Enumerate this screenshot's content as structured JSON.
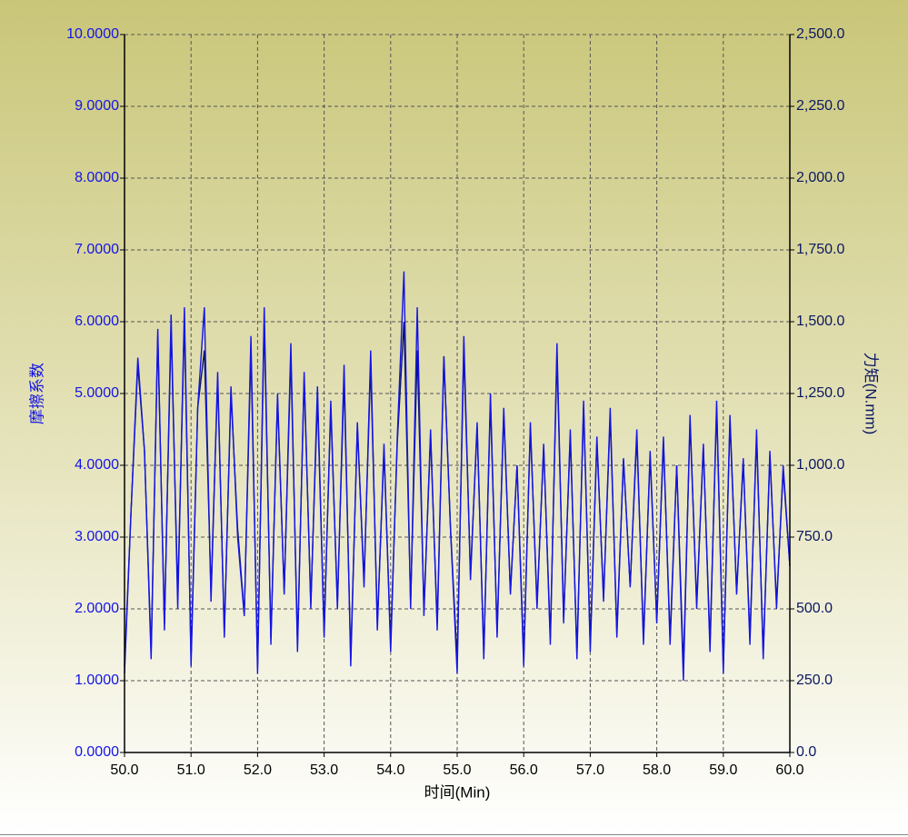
{
  "chart_data": {
    "type": "line",
    "xlabel": "时间(Min)",
    "ylabel": "摩擦系数",
    "y2label": "力矩(N.mm)",
    "x": [
      50.0,
      50.1,
      50.2,
      50.3,
      50.4,
      50.5,
      50.6,
      50.7,
      50.8,
      50.9,
      51.0,
      51.1,
      51.2,
      51.3,
      51.4,
      51.5,
      51.6,
      51.7,
      51.8,
      51.9,
      52.0,
      52.1,
      52.2,
      52.3,
      52.4,
      52.5,
      52.6,
      52.7,
      52.8,
      52.9,
      53.0,
      53.1,
      53.2,
      53.3,
      53.4,
      53.5,
      53.6,
      53.7,
      53.8,
      53.9,
      54.0,
      54.1,
      54.2,
      54.3,
      54.4,
      54.5,
      54.6,
      54.7,
      54.8,
      54.9,
      55.0,
      55.1,
      55.2,
      55.3,
      55.4,
      55.5,
      55.6,
      55.7,
      55.8,
      55.9,
      56.0,
      56.1,
      56.2,
      56.3,
      56.4,
      56.5,
      56.6,
      56.7,
      56.8,
      56.9,
      57.0,
      57.1,
      57.2,
      57.3,
      57.4,
      57.5,
      57.6,
      57.7,
      57.8,
      57.9,
      58.0,
      58.1,
      58.2,
      58.3,
      58.4,
      58.5,
      58.6,
      58.7,
      58.8,
      58.9,
      59.0,
      59.1,
      59.2,
      59.3,
      59.4,
      59.5,
      59.6,
      59.7,
      59.8,
      59.9,
      60.0
    ],
    "series": [
      {
        "name": "力矩(N.mm)",
        "color": "#0b1760",
        "axis": "y2",
        "values": [
          300,
          850,
          1350,
          1050,
          350,
          1450,
          450,
          1480,
          550,
          1500,
          330,
          1200,
          1400,
          560,
          1300,
          420,
          1250,
          780,
          480,
          1400,
          300,
          1500,
          400,
          1230,
          560,
          1380,
          380,
          1300,
          520,
          1230,
          420,
          1200,
          520,
          1300,
          330,
          1130,
          600,
          1350,
          450,
          1050,
          380,
          1080,
          1500,
          520,
          1400,
          500,
          1100,
          450,
          1380,
          780,
          320,
          1400,
          620,
          1130,
          350,
          1220,
          420,
          1180,
          560,
          1000,
          330,
          1130,
          520,
          1060,
          400,
          1380,
          470,
          1100,
          350,
          1200,
          380,
          1080,
          540,
          1170,
          420,
          1020,
          580,
          1100,
          400,
          1030,
          460,
          1080,
          400,
          1000,
          300,
          1150,
          520,
          1060,
          380,
          1200,
          300,
          1150,
          560,
          1010,
          400,
          1100,
          350,
          1030,
          520,
          980,
          650
        ]
      },
      {
        "name": "摩擦系数",
        "color": "#1414e6",
        "values": [
          1.1,
          3.4,
          5.5,
          4.2,
          1.3,
          5.9,
          1.7,
          6.1,
          2.0,
          6.2,
          1.2,
          4.8,
          6.2,
          2.1,
          5.3,
          1.6,
          5.1,
          3.0,
          1.9,
          5.8,
          1.1,
          6.2,
          1.5,
          5.0,
          2.2,
          5.7,
          1.4,
          5.3,
          2.0,
          5.1,
          1.6,
          4.9,
          2.0,
          5.4,
          1.2,
          4.6,
          2.3,
          5.6,
          1.7,
          4.3,
          1.4,
          4.4,
          6.7,
          2.0,
          6.2,
          1.9,
          4.5,
          1.7,
          5.5,
          3.1,
          1.1,
          5.8,
          2.4,
          4.6,
          1.3,
          5.0,
          1.6,
          4.8,
          2.2,
          4.0,
          1.2,
          4.6,
          2.0,
          4.3,
          1.5,
          5.7,
          1.8,
          4.5,
          1.3,
          4.9,
          1.4,
          4.4,
          2.1,
          4.8,
          1.6,
          4.1,
          2.3,
          4.5,
          1.5,
          4.2,
          1.8,
          4.4,
          1.5,
          4.0,
          1.0,
          4.7,
          2.0,
          4.3,
          1.4,
          4.9,
          1.1,
          4.7,
          2.2,
          4.1,
          1.5,
          4.5,
          1.3,
          4.2,
          2.0,
          4.0,
          2.6
        ]
      }
    ],
    "xlim": [
      50,
      60
    ],
    "xticks": [
      {
        "value": 50,
        "label": "50.0"
      },
      {
        "value": 51,
        "label": "51.0"
      },
      {
        "value": 52,
        "label": "52.0"
      },
      {
        "value": 53,
        "label": "53.0"
      },
      {
        "value": 54,
        "label": "54.0"
      },
      {
        "value": 55,
        "label": "55.0"
      },
      {
        "value": 56,
        "label": "56.0"
      },
      {
        "value": 57,
        "label": "57.0"
      },
      {
        "value": 58,
        "label": "58.0"
      },
      {
        "value": 59,
        "label": "59.0"
      },
      {
        "value": 60,
        "label": "60.0"
      }
    ],
    "ylim": [
      0,
      10
    ],
    "yticks": [
      {
        "value": 0,
        "label": "0.0000"
      },
      {
        "value": 1,
        "label": "1.0000"
      },
      {
        "value": 2,
        "label": "2.0000"
      },
      {
        "value": 3,
        "label": "3.0000"
      },
      {
        "value": 4,
        "label": "4.0000"
      },
      {
        "value": 5,
        "label": "5.0000"
      },
      {
        "value": 6,
        "label": "6.0000"
      },
      {
        "value": 7,
        "label": "7.0000"
      },
      {
        "value": 8,
        "label": "8.0000"
      },
      {
        "value": 9,
        "label": "9.0000"
      },
      {
        "value": 10,
        "label": "10.0000"
      }
    ],
    "y2lim": [
      0,
      2500
    ],
    "y2ticks": [
      {
        "value": 0,
        "label": "0.0"
      },
      {
        "value": 250,
        "label": "250.0"
      },
      {
        "value": 500,
        "label": "500.0"
      },
      {
        "value": 750,
        "label": "750.0"
      },
      {
        "value": 1000,
        "label": "1,000.0"
      },
      {
        "value": 1250,
        "label": "1,250.0"
      },
      {
        "value": 1500,
        "label": "1,500.0"
      },
      {
        "value": 1750,
        "label": "1,750.0"
      },
      {
        "value": 2000,
        "label": "2,000.0"
      },
      {
        "value": 2250,
        "label": "2,250.0"
      },
      {
        "value": 2500,
        "label": "2,500.0"
      }
    ],
    "grid": true
  }
}
